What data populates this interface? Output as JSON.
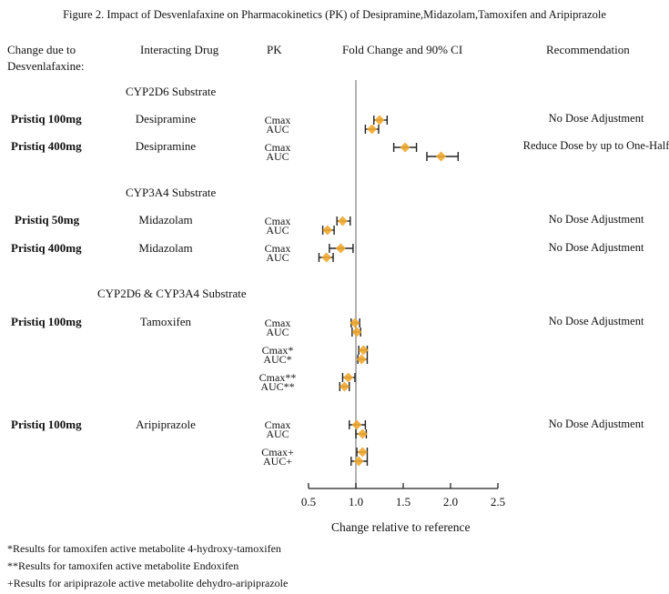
{
  "chart_data": {
    "type": "forest",
    "title": "Figure 2. Impact of Desvenlafaxine on Pharmacokinetics (PK) of Desipramine,Midazolam,Tamoxifen and Aripiprazole",
    "columns": {
      "change_due_to_line1": "Change due to",
      "change_due_to_line2": "Desvenlafaxine:",
      "interacting_drug": "Interacting Drug",
      "pk": "PK",
      "fold_change": "Fold Change and 90% CI",
      "recommendation": "Recommendation"
    },
    "xlabel": "Change relative to reference",
    "xlim": [
      0.5,
      2.5
    ],
    "xticks": [
      "0.5",
      "1.0",
      "1.5",
      "2.0",
      "2.5"
    ],
    "xtick_values": [
      0.5,
      1.0,
      1.5,
      2.0,
      2.5
    ],
    "reference_line": 1.0,
    "marker_color": "#F0A830",
    "sections": [
      {
        "label": "CYP2D6 Substrate",
        "groups": [
          {
            "dose": "Pristiq 100mg",
            "drug": "Desipramine",
            "recommendation": "No Dose Adjustment",
            "points": [
              {
                "pk": "Cmax",
                "estimate": 1.25,
                "lower": 1.19,
                "upper": 1.33
              },
              {
                "pk": "AUC",
                "estimate": 1.17,
                "lower": 1.1,
                "upper": 1.24
              }
            ]
          },
          {
            "dose": "Pristiq 400mg",
            "drug": "Desipramine",
            "recommendation": "Reduce Dose by up to One-Half",
            "points": [
              {
                "pk": "Cmax",
                "estimate": 1.52,
                "lower": 1.4,
                "upper": 1.64
              },
              {
                "pk": "AUC",
                "estimate": 1.9,
                "lower": 1.75,
                "upper": 2.08
              }
            ]
          }
        ]
      },
      {
        "label": "CYP3A4 Substrate",
        "groups": [
          {
            "dose": "Pristiq 50mg",
            "drug": "Midazolam",
            "recommendation": "No Dose Adjustment",
            "points": [
              {
                "pk": "Cmax",
                "estimate": 0.86,
                "lower": 0.8,
                "upper": 0.94
              },
              {
                "pk": "AUC",
                "estimate": 0.7,
                "lower": 0.65,
                "upper": 0.77
              }
            ]
          },
          {
            "dose": "Pristiq 400mg",
            "drug": "Midazolam",
            "recommendation": "No Dose Adjustment",
            "points": [
              {
                "pk": "Cmax",
                "estimate": 0.84,
                "lower": 0.72,
                "upper": 0.97
              },
              {
                "pk": "AUC",
                "estimate": 0.69,
                "lower": 0.61,
                "upper": 0.76
              }
            ]
          }
        ]
      },
      {
        "label": "CYP2D6 & CYP3A4 Substrate",
        "groups": [
          {
            "dose": "Pristiq 100mg",
            "drug": "Tamoxifen",
            "recommendation": "No Dose Adjustment",
            "points": [
              {
                "pk": "Cmax",
                "estimate": 0.99,
                "lower": 0.95,
                "upper": 1.04
              },
              {
                "pk": "AUC",
                "estimate": 1.01,
                "lower": 0.96,
                "upper": 1.05
              },
              {
                "pk": "Cmax*",
                "estimate": 1.08,
                "lower": 1.03,
                "upper": 1.12
              },
              {
                "pk": "AUC*",
                "estimate": 1.06,
                "lower": 1.02,
                "upper": 1.12
              },
              {
                "pk": "Cmax**",
                "estimate": 0.92,
                "lower": 0.86,
                "upper": 0.99
              },
              {
                "pk": "AUC**",
                "estimate": 0.88,
                "lower": 0.83,
                "upper": 0.93
              }
            ]
          },
          {
            "dose": "Pristiq 100mg",
            "drug": "Aripiprazole",
            "recommendation": "No Dose Adjustment",
            "points": [
              {
                "pk": "Cmax",
                "estimate": 1.01,
                "lower": 0.93,
                "upper": 1.1
              },
              {
                "pk": "AUC",
                "estimate": 1.07,
                "lower": 1.0,
                "upper": 1.11
              },
              {
                "pk": "Cmax+",
                "estimate": 1.07,
                "lower": 1.01,
                "upper": 1.12
              },
              {
                "pk": "AUC+",
                "estimate": 1.03,
                "lower": 0.95,
                "upper": 1.12
              }
            ]
          }
        ]
      }
    ],
    "footnotes": [
      "*Results for tamoxifen active metabolite 4-hydroxy-tamoxifen",
      "**Results for tamoxifen  active metabolite Endoxifen",
      "+Results for aripiprazole active metabolite dehydro-aripiprazole"
    ]
  }
}
